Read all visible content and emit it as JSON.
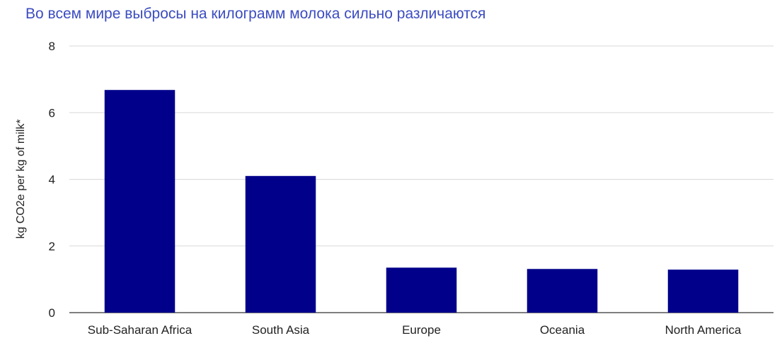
{
  "chart_data": {
    "type": "bar",
    "title": "Во всем мире выбросы на килограмм молока сильно различаются",
    "xlabel": "",
    "ylabel": "kg CO2e per kg of milk*",
    "categories": [
      "Sub-Saharan Africa",
      "South Asia",
      "Europe",
      "Oceania",
      "North America"
    ],
    "values": [
      6.68,
      4.1,
      1.35,
      1.31,
      1.29
    ],
    "ylim": [
      0,
      8
    ],
    "yticks": [
      0,
      2,
      4,
      6,
      8
    ],
    "grid": true,
    "legend": "none",
    "bar_color": "#00008b",
    "title_color": "#3b4cc0"
  }
}
